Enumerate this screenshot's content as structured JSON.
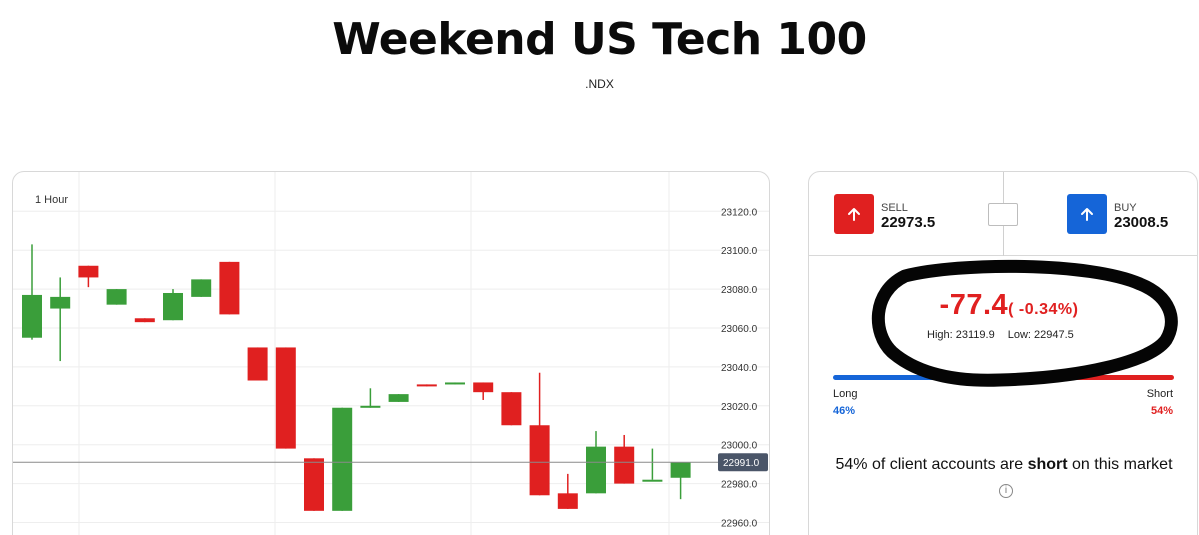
{
  "header": {
    "title": "Weekend US Tech 100",
    "ticker": ".NDX"
  },
  "chart": {
    "timeframe": "1 Hour",
    "current_price_label": "22991.0",
    "colors": {
      "up": "#3a9e3a",
      "down": "#e02020",
      "grid": "#eeeeee",
      "price_tag": "#4a5568"
    }
  },
  "chart_data": {
    "type": "candlestick",
    "timeframe": "1 Hour",
    "yticks": [
      "23120.0",
      "23100.0",
      "23080.0",
      "23060.0",
      "23040.0",
      "23020.0",
      "23000.0",
      "22980.0",
      "22960.0"
    ],
    "ylim": [
      22950,
      23125
    ],
    "current_price": 22991.0,
    "candles": [
      {
        "o": 23055,
        "h": 23103,
        "l": 23054,
        "c": 23077
      },
      {
        "o": 23070,
        "h": 23086,
        "l": 23043,
        "c": 23076
      },
      {
        "o": 23092,
        "h": 23092,
        "l": 23081,
        "c": 23086
      },
      {
        "o": 23072,
        "h": 23080,
        "l": 23072,
        "c": 23080
      },
      {
        "o": 23065,
        "h": 23065,
        "l": 23063,
        "c": 23063
      },
      {
        "o": 23064,
        "h": 23080,
        "l": 23064,
        "c": 23078
      },
      {
        "o": 23076,
        "h": 23085,
        "l": 23076,
        "c": 23085
      },
      {
        "o": 23094,
        "h": 23094,
        "l": 23067,
        "c": 23067
      },
      {
        "o": 23050,
        "h": 23050,
        "l": 23033,
        "c": 23033
      },
      {
        "o": 23050,
        "h": 23050,
        "l": 22998,
        "c": 22998
      },
      {
        "o": 22993,
        "h": 22993,
        "l": 22966,
        "c": 22966
      },
      {
        "o": 22966,
        "h": 23019,
        "l": 22966,
        "c": 23019
      },
      {
        "o": 23019,
        "h": 23029,
        "l": 23019,
        "c": 23020
      },
      {
        "o": 23022,
        "h": 23026,
        "l": 23022,
        "c": 23026
      },
      {
        "o": 23031,
        "h": 23031,
        "l": 23030,
        "c": 23030
      },
      {
        "o": 23031,
        "h": 23032,
        "l": 23031,
        "c": 23032
      },
      {
        "o": 23032,
        "h": 23032,
        "l": 23023,
        "c": 23027
      },
      {
        "o": 23027,
        "h": 23027,
        "l": 23010,
        "c": 23010
      },
      {
        "o": 23010,
        "h": 23037,
        "l": 22974,
        "c": 22974
      },
      {
        "o": 22975,
        "h": 22985,
        "l": 22967,
        "c": 22967
      },
      {
        "o": 22975,
        "h": 23007,
        "l": 22975,
        "c": 22999
      },
      {
        "o": 22999,
        "h": 23005,
        "l": 22980,
        "c": 22980
      },
      {
        "o": 22982,
        "h": 22998,
        "l": 22982,
        "c": 22982
      },
      {
        "o": 22983,
        "h": 22990,
        "l": 22972,
        "c": 22991
      }
    ]
  },
  "trade": {
    "sell_label": "SELL",
    "sell_price": "22973.5",
    "buy_label": "BUY",
    "buy_price": "23008.5",
    "change": "-77.4",
    "change_pct": "( -0.34%)",
    "high": "High: 23119.9",
    "low": "Low: 22947.5",
    "long_label": "Long",
    "long_pct": "46%",
    "long_value": 46,
    "short_label": "Short",
    "short_pct": "54%",
    "short_value": 54,
    "sentiment_pre": "54% of client accounts are ",
    "sentiment_bold": "short",
    "sentiment_post": " on this market",
    "colors": {
      "sell": "#e02020",
      "buy": "#1565d8"
    },
    "icons": {
      "sell": "arrow-up-icon",
      "buy": "arrow-up-icon",
      "info": "info-icon"
    }
  }
}
